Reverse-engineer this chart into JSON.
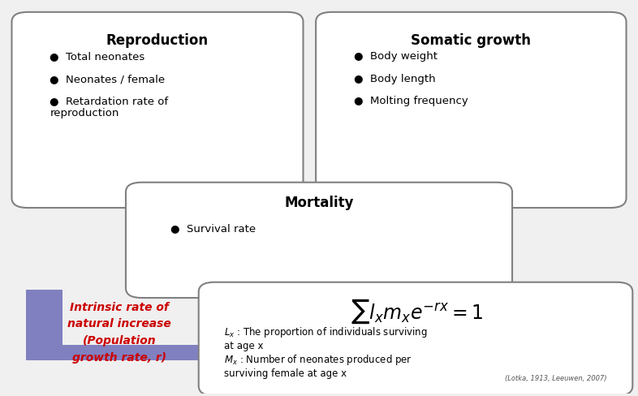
{
  "bg_color": "#f0f0f0",
  "box_facecolor": "white",
  "box_edgecolor": "#808080",
  "reproduction_title": "Reproduction",
  "reproduction_items": [
    "Total neonates",
    "Neonates / female",
    "Retardation rate of\nreproduction"
  ],
  "somatic_title": "Somatic growth",
  "somatic_items": [
    "Body weight",
    "Body length",
    "Molting frequency"
  ],
  "mortality_title": "Mortality",
  "mortality_items": [
    "Survival rate"
  ],
  "arrow_color": "#8080c0",
  "intrinsic_text_line1": "Intrinsic rate of",
  "intrinsic_text_line2": "natural increase",
  "intrinsic_text_line3": "(Population",
  "intrinsic_text_line4": "growth rate, r)",
  "intrinsic_color": "#cc0000",
  "formula_text": "$\\sum l_x m_x e^{-rx} = 1$",
  "lx_desc": "$L_x$ : The proportion of individuals surviving\nat age x",
  "mx_desc": "$M_x$ : Number of neonates produced per\nsurviving female at age x",
  "citation": "(Lotka, 1913, Leeuwen, 2007)",
  "bullet": "●"
}
